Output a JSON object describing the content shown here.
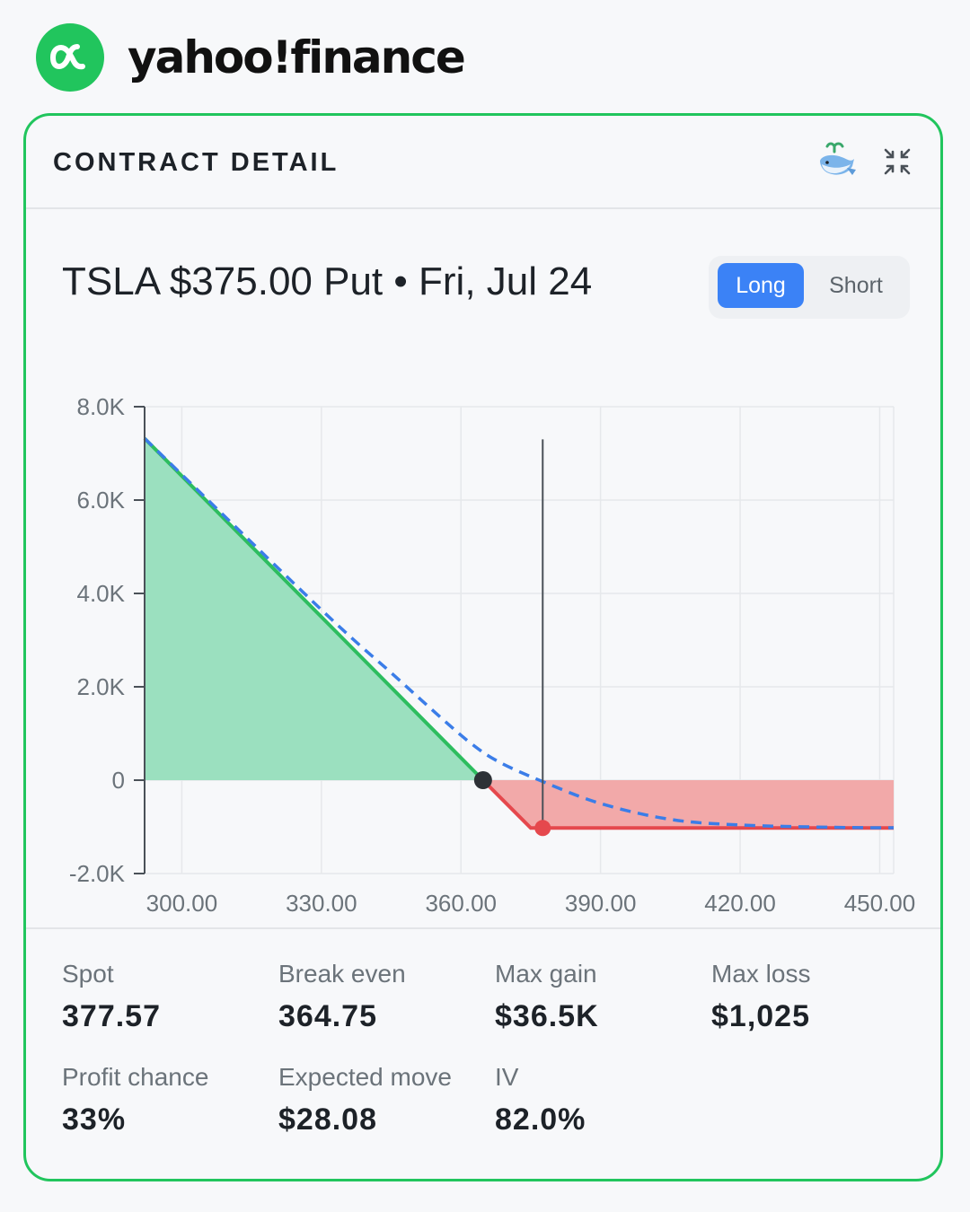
{
  "brand": {
    "name": "yahoo!finance"
  },
  "card": {
    "title": "CONTRACT DETAIL",
    "icons": [
      "whale-icon",
      "collapse-icon"
    ]
  },
  "contract": {
    "title": "TSLA $375.00 Put • Fri, Jul 24",
    "toggle": {
      "long": "Long",
      "short": "Short",
      "selected": "Long"
    }
  },
  "chart_data": {
    "type": "area",
    "x_ticks": [
      "300.00",
      "330.00",
      "360.00",
      "390.00",
      "420.00",
      "450.00"
    ],
    "y_ticks": [
      "8.0K",
      "6.0K",
      "4.0K",
      "2.0K",
      "0",
      "-2.0K"
    ],
    "xlim": [
      292,
      453
    ],
    "ylim": [
      -2000,
      8000
    ],
    "grid": true,
    "series": [
      {
        "style": "solid",
        "color_gain": "#2dbd5f",
        "color_loss": "#e5484d",
        "points": [
          [
            292,
            7320
          ],
          [
            364.75,
            0
          ],
          [
            375,
            -1025
          ],
          [
            453,
            -1025
          ]
        ]
      },
      {
        "style": "dashed",
        "color": "#3b7de8",
        "points": [
          [
            292,
            7320
          ],
          [
            330,
            3650
          ],
          [
            345,
            2300
          ],
          [
            355,
            1400
          ],
          [
            362,
            800
          ],
          [
            368,
            400
          ],
          [
            377.57,
            -30
          ],
          [
            390,
            -500
          ],
          [
            405,
            -840
          ],
          [
            420,
            -960
          ],
          [
            440,
            -1010
          ],
          [
            453,
            -1020
          ]
        ]
      }
    ],
    "break_even": 364.75,
    "spot": 377.57,
    "strike_marker": [
      377.57,
      -1025
    ],
    "fill_gain": "#9be0bf",
    "fill_loss": "#f2a9a9"
  },
  "stats": [
    {
      "label": "Spot",
      "value": "377.57"
    },
    {
      "label": "Break even",
      "value": "364.75"
    },
    {
      "label": "Max gain",
      "value": "$36.5K"
    },
    {
      "label": "Max loss",
      "value": "$1,025"
    },
    {
      "label": "Profit chance",
      "value": "33%"
    },
    {
      "label": "Expected move",
      "value": "$28.08"
    },
    {
      "label": "IV",
      "value": "82.0%"
    }
  ]
}
